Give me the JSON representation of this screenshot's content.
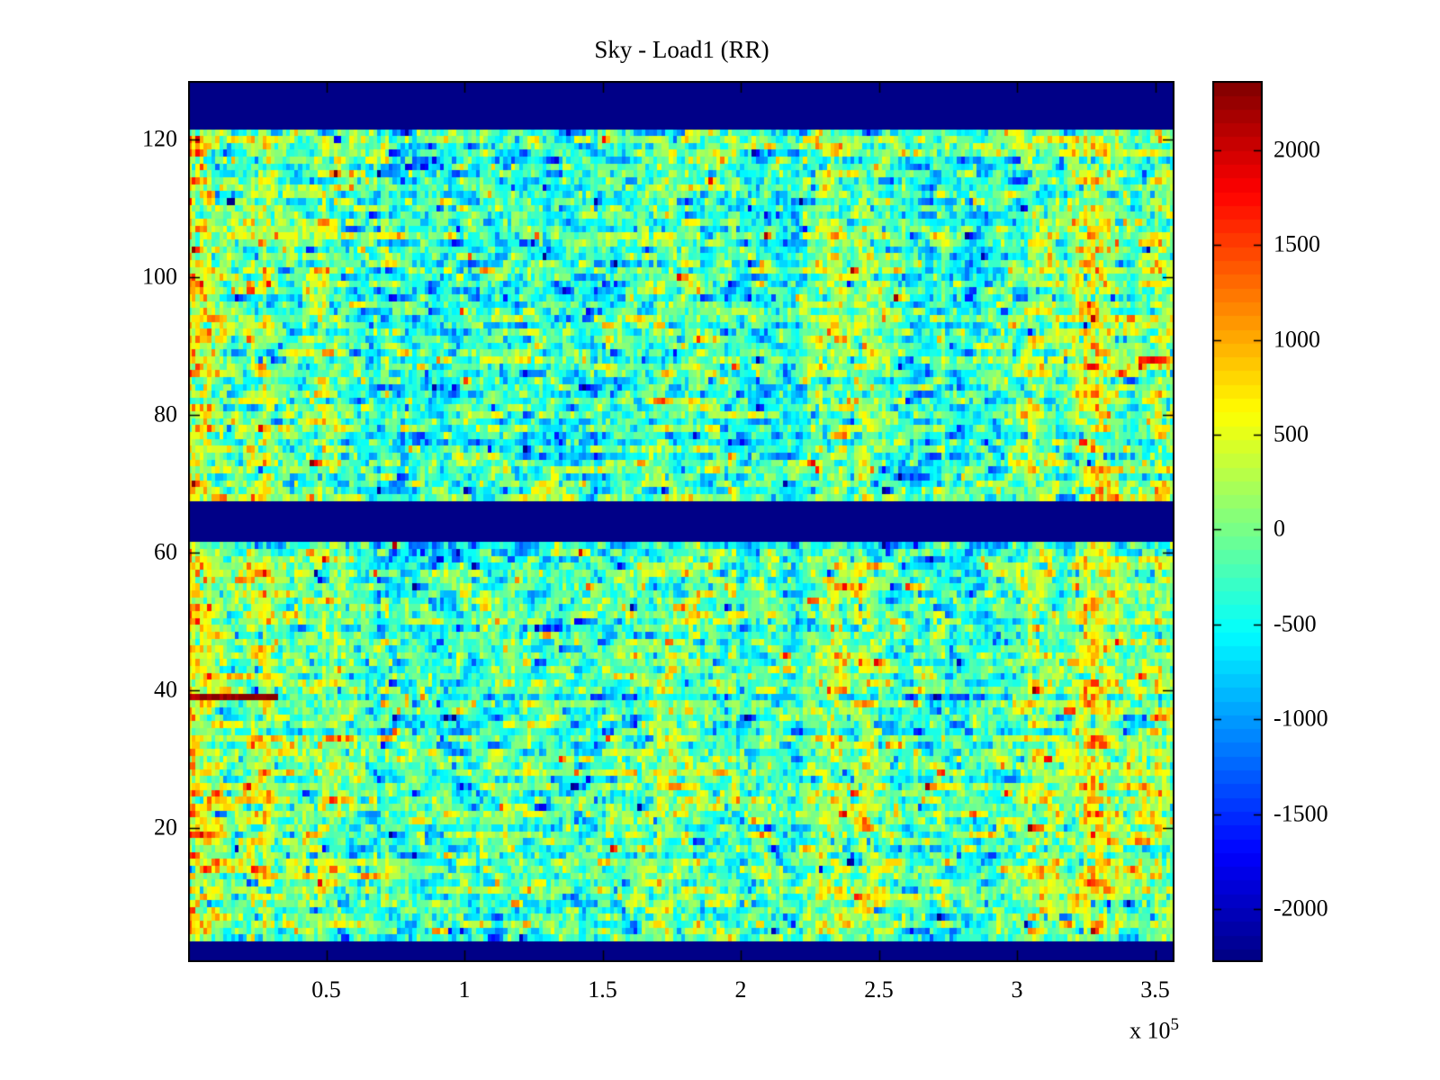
{
  "chart_data": {
    "type": "heatmap",
    "title": "Sky - Load1 (RR)",
    "xlabel": "",
    "ylabel": "",
    "x_scale": {
      "base": "x 10",
      "exponent": "5"
    },
    "xlim_e5": [
      0,
      3.57
    ],
    "ylim": [
      0.5,
      128.5
    ],
    "x_ticks_e5": [
      0.5,
      1,
      1.5,
      2,
      2.5,
      3,
      3.5
    ],
    "x_tick_labels": [
      "0.5",
      "1",
      "1.5",
      "2",
      "2.5",
      "3",
      "3.5"
    ],
    "y_ticks": [
      20,
      40,
      60,
      80,
      100,
      120
    ],
    "y_tick_labels": [
      "20",
      "40",
      "60",
      "80",
      "100",
      "120"
    ],
    "colormap": "jet",
    "clim": [
      -2280,
      2365
    ],
    "grid": {
      "rows": 128,
      "cols": 250,
      "grid_lines": false
    },
    "colorbar": {
      "ticks": [
        2000,
        1500,
        1000,
        500,
        0,
        -500,
        -1000,
        -1500,
        -2000
      ],
      "tick_labels": [
        "2000",
        "1500",
        "1000",
        "500",
        "0",
        "-500",
        "-1000",
        "-1500",
        "-2000"
      ],
      "levels": 64,
      "position": "right"
    },
    "masked_row_bands": [
      [
        0.5,
        3.5
      ],
      [
        61.5,
        67.5
      ],
      [
        121.5,
        128.5
      ]
    ],
    "masked_color_hex": "#00008f",
    "hot_streak": {
      "y": 39,
      "x_range_e5": [
        0,
        0.33
      ],
      "value": 2300,
      "tail_offset": -350
    },
    "warm_columns": [
      {
        "center_e5": 0.02,
        "sigma_e5": 0.07,
        "amp": 950
      },
      {
        "center_e5": 0.27,
        "sigma_e5": 0.05,
        "amp": 620
      },
      {
        "center_e5": 0.49,
        "sigma_e5": 0.06,
        "amp": 430
      },
      {
        "center_e5": 1.8,
        "sigma_e5": 0.13,
        "amp": 260
      },
      {
        "center_e5": 2.33,
        "sigma_e5": 0.05,
        "amp": 470
      },
      {
        "center_e5": 2.47,
        "sigma_e5": 0.04,
        "amp": 430
      },
      {
        "center_e5": 3.08,
        "sigma_e5": 0.04,
        "amp": 480
      },
      {
        "center_e5": 3.28,
        "sigma_e5": 0.06,
        "amp": 850
      },
      {
        "center_e5": 3.52,
        "sigma_e5": 0.06,
        "amp": 560
      }
    ],
    "warm_rows": [
      {
        "y": 15,
        "amp": 320,
        "x_max_e5": 1.1
      },
      {
        "y": 79,
        "amp": 300,
        "x_max_e5": 0.7
      }
    ],
    "section_offsets": [
      {
        "y_range": [
          4,
          61
        ],
        "offset": 40
      },
      {
        "y_range": [
          69,
          121
        ],
        "offset": -60
      }
    ],
    "noise": {
      "seed": 1337,
      "mean": -280,
      "std": 430,
      "x_corr": 0.55,
      "row_jitter": 110,
      "col_jitter": 90,
      "tail_prob": 0.06,
      "tail_mult": 2.3
    },
    "axis_color": "#000000",
    "background_color": "#ffffff"
  }
}
